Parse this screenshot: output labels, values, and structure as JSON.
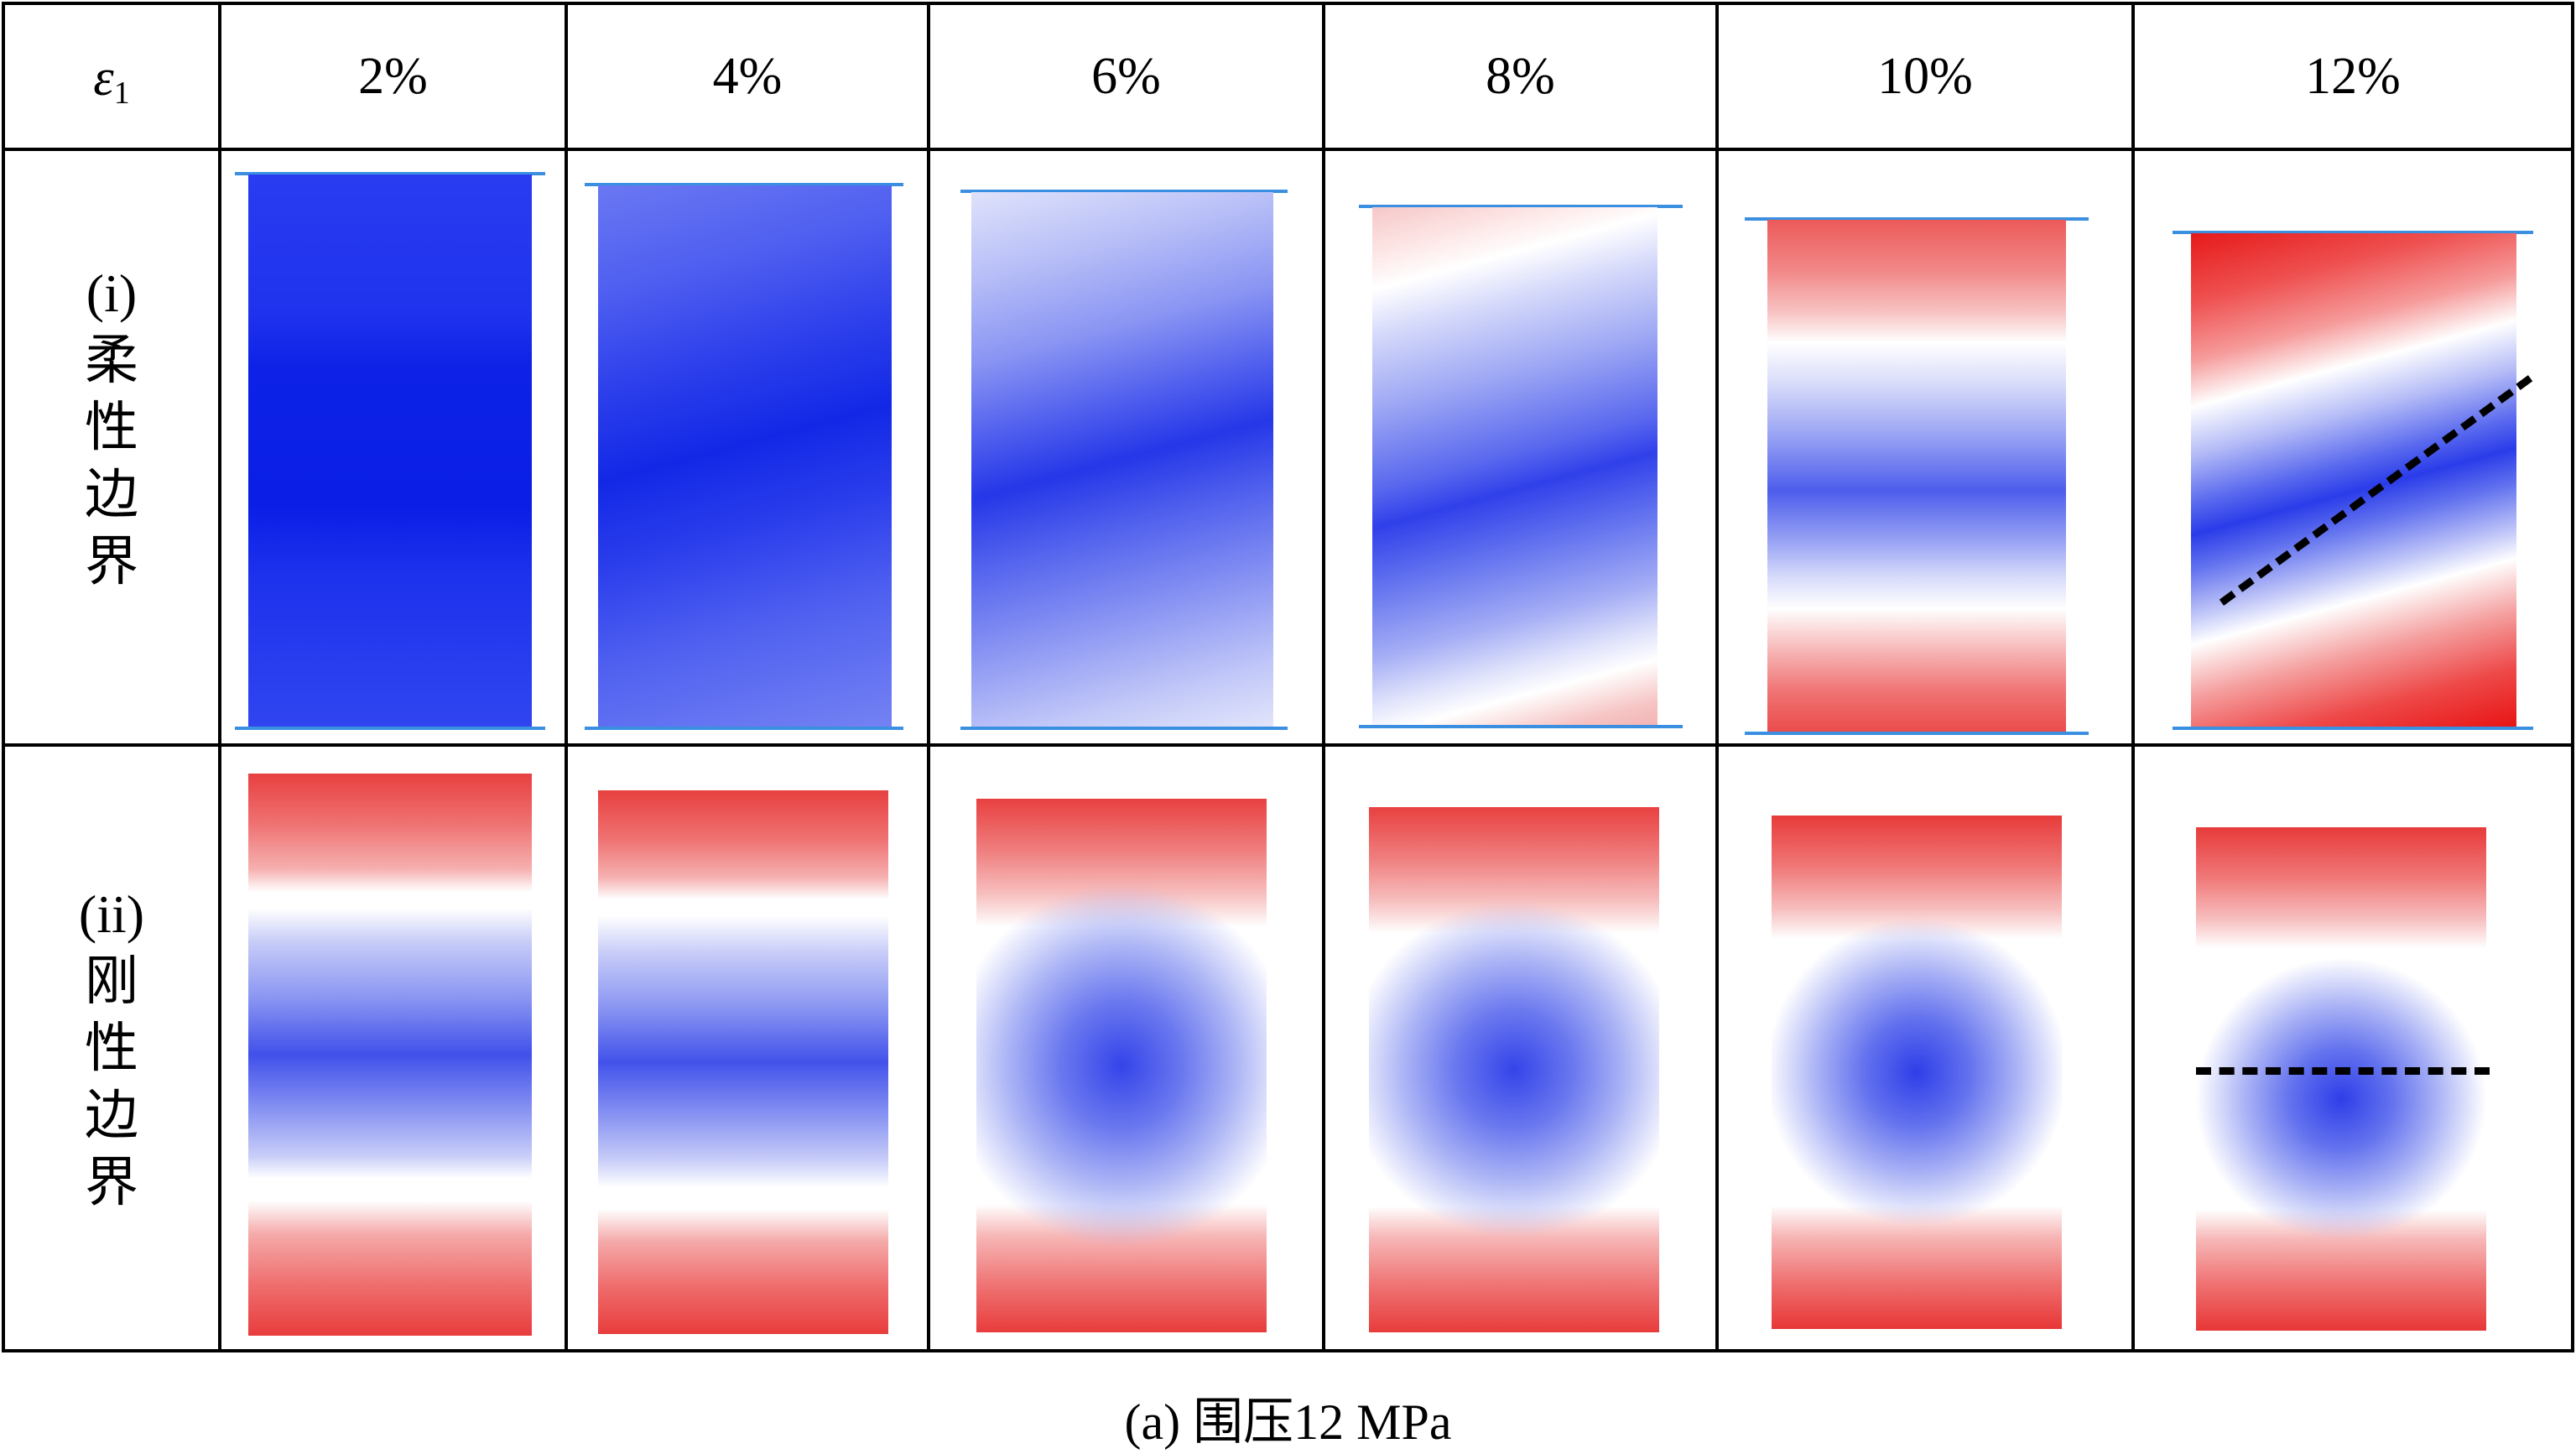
{
  "header": {
    "strain_label": "ε",
    "strain_sub": "1",
    "columns": [
      "2%",
      "4%",
      "6%",
      "8%",
      "10%",
      "12%"
    ]
  },
  "rows": [
    {
      "index": "(i)",
      "chars": [
        "柔",
        "性",
        "边",
        "界"
      ]
    },
    {
      "index": "(ii)",
      "chars": [
        "刚",
        "性",
        "边",
        "界"
      ]
    }
  ],
  "caption": "(a) 围压12 MPa",
  "colors": {
    "compression": "#0a1ee8",
    "tension": "#ee1c1c",
    "boundary_bar": "#3b8fe0",
    "neutral": "#ffffff"
  }
}
